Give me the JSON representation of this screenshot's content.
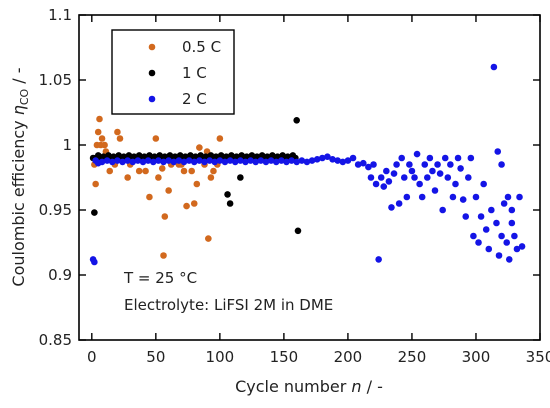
{
  "chart_data": {
    "type": "scatter",
    "title": "",
    "xlabel": {
      "main": "Cycle number ",
      "var": "n",
      "unit": " / -"
    },
    "ylabel": {
      "main": "Coulombic efficiency ",
      "var": "η",
      "sub": "CO",
      "unit": " / -"
    },
    "xlim": [
      -10,
      350
    ],
    "ylim": [
      0.85,
      1.1
    ],
    "xticks": [
      0,
      50,
      100,
      150,
      200,
      250,
      300,
      350
    ],
    "yticks": [
      0.85,
      0.9,
      0.95,
      1,
      1.05,
      1.1
    ],
    "xtick_labels": [
      "0",
      "50",
      "100",
      "150",
      "200",
      "250",
      "300",
      "350"
    ],
    "ytick_labels": [
      "0.85",
      "0.9",
      "0.95",
      "1",
      "1.05",
      "1.1"
    ],
    "grid": false,
    "legend_position": "top-left",
    "legend": [
      {
        "label": "0.5 C",
        "color": "#d2691e"
      },
      {
        "label": "1 C",
        "color": "#000000"
      },
      {
        "label": "2 C",
        "color": "#1414e6"
      }
    ],
    "annotations": [
      "T = 25 °C",
      "Electrolyte: LiFSI 2M in DME"
    ],
    "series": [
      {
        "name": "0.5 C",
        "color": "#d2691e",
        "points": [
          [
            2,
            0.985
          ],
          [
            3,
            0.97
          ],
          [
            4,
            1.0
          ],
          [
            5,
            1.01
          ],
          [
            6,
            1.02
          ],
          [
            7,
            1.0
          ],
          [
            8,
            1.005
          ],
          [
            9,
            0.99
          ],
          [
            10,
            1.0
          ],
          [
            11,
            0.995
          ],
          [
            12,
            0.99
          ],
          [
            14,
            0.98
          ],
          [
            18,
            0.985
          ],
          [
            20,
            1.01
          ],
          [
            22,
            1.005
          ],
          [
            25,
            0.99
          ],
          [
            28,
            0.975
          ],
          [
            30,
            0.985
          ],
          [
            33,
            0.99
          ],
          [
            37,
            0.98
          ],
          [
            42,
            0.98
          ],
          [
            45,
            0.96
          ],
          [
            48,
            0.99
          ],
          [
            50,
            1.005
          ],
          [
            52,
            0.975
          ],
          [
            55,
            0.982
          ],
          [
            56,
            0.915
          ],
          [
            57,
            0.945
          ],
          [
            58,
            0.99
          ],
          [
            60,
            0.965
          ],
          [
            62,
            0.985
          ],
          [
            65,
            0.99
          ],
          [
            68,
            0.985
          ],
          [
            70,
            0.985
          ],
          [
            72,
            0.98
          ],
          [
            74,
            0.953
          ],
          [
            76,
            0.99
          ],
          [
            78,
            0.98
          ],
          [
            80,
            0.955
          ],
          [
            82,
            0.97
          ],
          [
            84,
            0.998
          ],
          [
            86,
            0.99
          ],
          [
            88,
            0.985
          ],
          [
            90,
            0.995
          ],
          [
            91,
            0.928
          ],
          [
            93,
            0.975
          ],
          [
            95,
            0.98
          ],
          [
            96,
            0.99
          ],
          [
            98,
            0.985
          ],
          [
            100,
            1.005
          ]
        ]
      },
      {
        "name": "1 C",
        "color": "#000000",
        "points": [
          [
            1,
            0.99
          ],
          [
            2,
            0.948
          ],
          [
            3,
            0.99
          ],
          [
            5,
            0.992
          ],
          [
            7,
            0.99
          ],
          [
            9,
            0.991
          ],
          [
            11,
            0.99
          ],
          [
            13,
            0.992
          ],
          [
            15,
            0.99
          ],
          [
            17,
            0.991
          ],
          [
            19,
            0.99
          ],
          [
            21,
            0.992
          ],
          [
            23,
            0.99
          ],
          [
            25,
            0.991
          ],
          [
            27,
            0.99
          ],
          [
            29,
            0.992
          ],
          [
            31,
            0.99
          ],
          [
            33,
            0.991
          ],
          [
            35,
            0.99
          ],
          [
            37,
            0.992
          ],
          [
            39,
            0.99
          ],
          [
            41,
            0.991
          ],
          [
            43,
            0.99
          ],
          [
            45,
            0.992
          ],
          [
            47,
            0.99
          ],
          [
            49,
            0.991
          ],
          [
            51,
            0.99
          ],
          [
            53,
            0.992
          ],
          [
            55,
            0.99
          ],
          [
            57,
            0.991
          ],
          [
            59,
            0.99
          ],
          [
            61,
            0.992
          ],
          [
            63,
            0.99
          ],
          [
            65,
            0.991
          ],
          [
            67,
            0.99
          ],
          [
            69,
            0.992
          ],
          [
            71,
            0.99
          ],
          [
            73,
            0.991
          ],
          [
            75,
            0.99
          ],
          [
            77,
            0.992
          ],
          [
            79,
            0.99
          ],
          [
            81,
            0.991
          ],
          [
            83,
            0.99
          ],
          [
            85,
            0.992
          ],
          [
            87,
            0.99
          ],
          [
            89,
            0.991
          ],
          [
            91,
            0.99
          ],
          [
            93,
            0.992
          ],
          [
            95,
            0.99
          ],
          [
            97,
            0.991
          ],
          [
            99,
            0.99
          ],
          [
            101,
            0.992
          ],
          [
            103,
            0.99
          ],
          [
            105,
            0.991
          ],
          [
            106,
            0.962
          ],
          [
            107,
            0.99
          ],
          [
            108,
            0.955
          ],
          [
            109,
            0.992
          ],
          [
            111,
            0.99
          ],
          [
            113,
            0.991
          ],
          [
            115,
            0.99
          ],
          [
            116,
            0.975
          ],
          [
            117,
            0.992
          ],
          [
            119,
            0.99
          ],
          [
            121,
            0.991
          ],
          [
            123,
            0.99
          ],
          [
            125,
            0.992
          ],
          [
            127,
            0.99
          ],
          [
            129,
            0.991
          ],
          [
            131,
            0.99
          ],
          [
            133,
            0.992
          ],
          [
            135,
            0.99
          ],
          [
            137,
            0.991
          ],
          [
            139,
            0.99
          ],
          [
            141,
            0.992
          ],
          [
            143,
            0.99
          ],
          [
            145,
            0.991
          ],
          [
            147,
            0.99
          ],
          [
            149,
            0.992
          ],
          [
            151,
            0.99
          ],
          [
            153,
            0.991
          ],
          [
            155,
            0.99
          ],
          [
            157,
            0.992
          ],
          [
            159,
            0.99
          ],
          [
            160,
            1.019
          ],
          [
            161,
            0.934
          ]
        ]
      },
      {
        "name": "2 C",
        "color": "#1414e6",
        "points": [
          [
            1,
            0.912
          ],
          [
            2,
            0.91
          ],
          [
            3,
            0.988
          ],
          [
            5,
            0.986
          ],
          [
            8,
            0.987
          ],
          [
            12,
            0.988
          ],
          [
            16,
            0.987
          ],
          [
            20,
            0.988
          ],
          [
            24,
            0.987
          ],
          [
            28,
            0.988
          ],
          [
            32,
            0.987
          ],
          [
            36,
            0.988
          ],
          [
            40,
            0.987
          ],
          [
            44,
            0.988
          ],
          [
            48,
            0.987
          ],
          [
            52,
            0.988
          ],
          [
            56,
            0.987
          ],
          [
            60,
            0.988
          ],
          [
            64,
            0.987
          ],
          [
            68,
            0.988
          ],
          [
            72,
            0.987
          ],
          [
            76,
            0.988
          ],
          [
            80,
            0.987
          ],
          [
            84,
            0.988
          ],
          [
            88,
            0.987
          ],
          [
            92,
            0.988
          ],
          [
            96,
            0.987
          ],
          [
            100,
            0.988
          ],
          [
            104,
            0.987
          ],
          [
            108,
            0.988
          ],
          [
            112,
            0.987
          ],
          [
            116,
            0.988
          ],
          [
            120,
            0.987
          ],
          [
            124,
            0.988
          ],
          [
            128,
            0.987
          ],
          [
            132,
            0.988
          ],
          [
            136,
            0.987
          ],
          [
            140,
            0.988
          ],
          [
            144,
            0.987
          ],
          [
            148,
            0.988
          ],
          [
            152,
            0.987
          ],
          [
            156,
            0.988
          ],
          [
            160,
            0.987
          ],
          [
            164,
            0.988
          ],
          [
            168,
            0.987
          ],
          [
            172,
            0.988
          ],
          [
            176,
            0.989
          ],
          [
            180,
            0.99
          ],
          [
            184,
            0.991
          ],
          [
            188,
            0.989
          ],
          [
            192,
            0.988
          ],
          [
            196,
            0.987
          ],
          [
            200,
            0.988
          ],
          [
            204,
            0.99
          ],
          [
            208,
            0.985
          ],
          [
            212,
            0.986
          ],
          [
            216,
            0.983
          ],
          [
            218,
            0.975
          ],
          [
            220,
            0.985
          ],
          [
            222,
            0.97
          ],
          [
            224,
            0.912
          ],
          [
            226,
            0.975
          ],
          [
            228,
            0.968
          ],
          [
            230,
            0.98
          ],
          [
            232,
            0.972
          ],
          [
            234,
            0.952
          ],
          [
            236,
            0.978
          ],
          [
            238,
            0.985
          ],
          [
            240,
            0.955
          ],
          [
            242,
            0.99
          ],
          [
            244,
            0.975
          ],
          [
            246,
            0.96
          ],
          [
            248,
            0.985
          ],
          [
            250,
            0.98
          ],
          [
            252,
            0.975
          ],
          [
            254,
            0.993
          ],
          [
            256,
            0.97
          ],
          [
            258,
            0.96
          ],
          [
            260,
            0.985
          ],
          [
            262,
            0.975
          ],
          [
            264,
            0.99
          ],
          [
            266,
            0.98
          ],
          [
            268,
            0.965
          ],
          [
            270,
            0.985
          ],
          [
            272,
            0.978
          ],
          [
            274,
            0.95
          ],
          [
            276,
            0.99
          ],
          [
            278,
            0.975
          ],
          [
            280,
            0.985
          ],
          [
            282,
            0.96
          ],
          [
            284,
            0.97
          ],
          [
            286,
            0.99
          ],
          [
            288,
            0.982
          ],
          [
            290,
            0.958
          ],
          [
            292,
            0.945
          ],
          [
            294,
            0.975
          ],
          [
            296,
            0.99
          ],
          [
            298,
            0.93
          ],
          [
            300,
            0.96
          ],
          [
            302,
            0.925
          ],
          [
            304,
            0.945
          ],
          [
            306,
            0.97
          ],
          [
            308,
            0.935
          ],
          [
            310,
            0.92
          ],
          [
            312,
            0.95
          ],
          [
            314,
            1.06
          ],
          [
            316,
            0.94
          ],
          [
            318,
            0.915
          ],
          [
            320,
            0.93
          ],
          [
            322,
            0.955
          ],
          [
            324,
            0.925
          ],
          [
            326,
            0.912
          ],
          [
            328,
            0.95
          ],
          [
            330,
            0.93
          ],
          [
            332,
            0.92
          ],
          [
            334,
            0.96
          ],
          [
            336,
            0.922
          ],
          [
            317,
            0.995
          ],
          [
            320,
            0.985
          ],
          [
            325,
            0.96
          ],
          [
            328,
            0.94
          ]
        ]
      }
    ]
  }
}
